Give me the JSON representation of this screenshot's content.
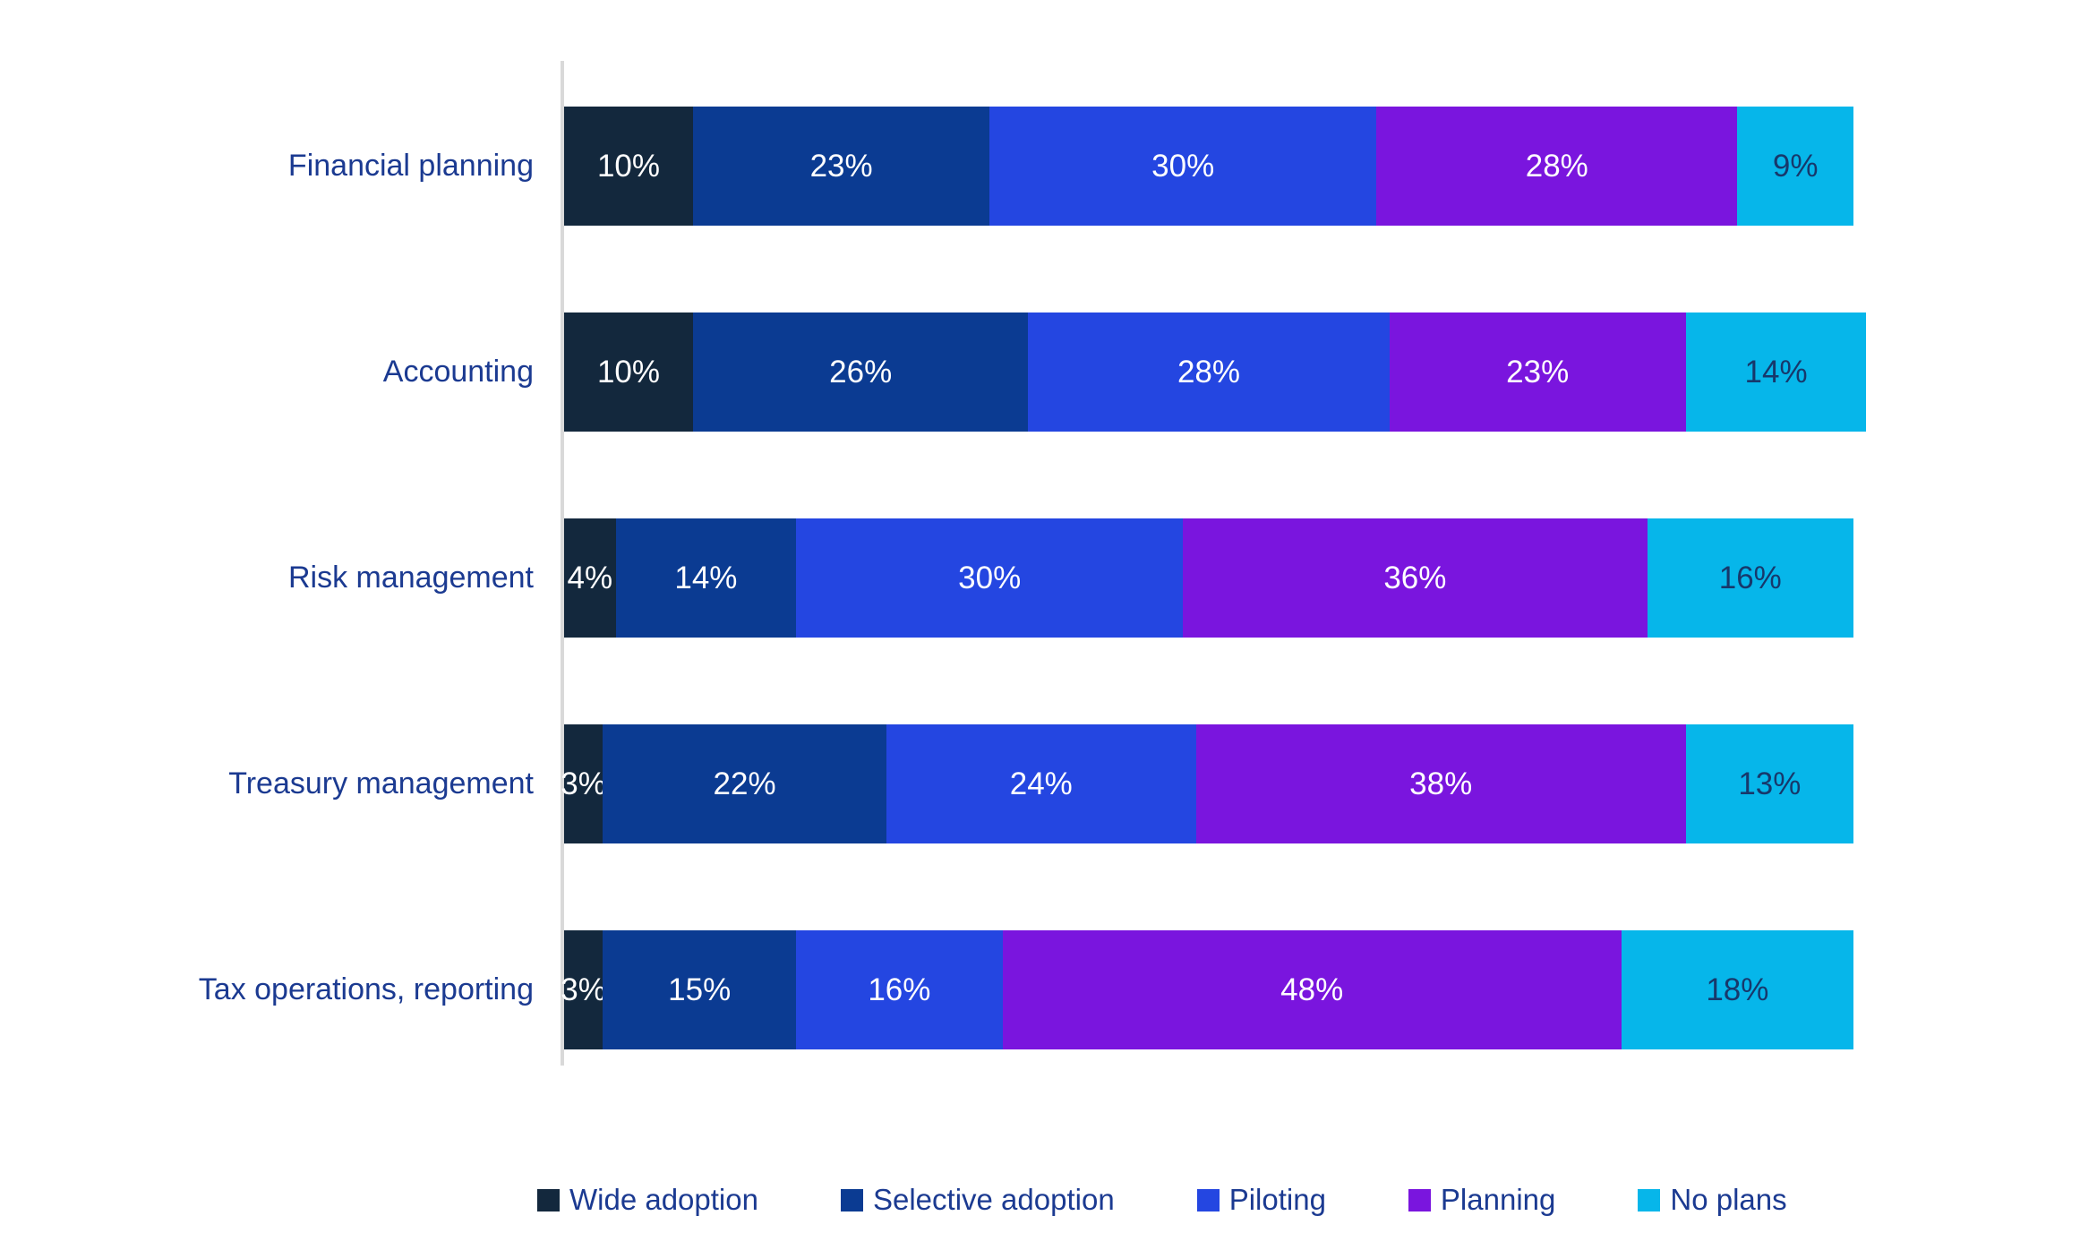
{
  "chart_data": {
    "type": "bar",
    "orientation": "horizontal",
    "stacked": true,
    "title": "",
    "xlabel": "",
    "ylabel": "",
    "value_suffix": "%",
    "grid": false,
    "legend_position": "bottom",
    "axis_line_color": "#D9D9D9",
    "category_label_color": "#1B3A91",
    "legend_text_color": "#1B3A91",
    "categories": [
      "Financial planning",
      "Accounting",
      "Risk management",
      "Treasury management",
      "Tax operations, reporting"
    ],
    "series": [
      {
        "name": "Wide adoption",
        "color": "#13283D",
        "label_color": "#FFFFFF",
        "values": [
          10,
          10,
          4,
          3,
          3
        ]
      },
      {
        "name": "Selective adoption",
        "color": "#0B3B92",
        "label_color": "#FFFFFF",
        "values": [
          23,
          26,
          14,
          22,
          15
        ]
      },
      {
        "name": "Piloting",
        "color": "#2446E1",
        "label_color": "#FFFFFF",
        "values": [
          30,
          28,
          30,
          24,
          16
        ]
      },
      {
        "name": "Planning",
        "color": "#7A15DE",
        "label_color": "#FFFFFF",
        "values": [
          28,
          23,
          36,
          38,
          48
        ]
      },
      {
        "name": "No plans",
        "color": "#06B6EA",
        "label_color": "#17386B",
        "values": [
          9,
          14,
          16,
          13,
          18
        ]
      }
    ]
  }
}
